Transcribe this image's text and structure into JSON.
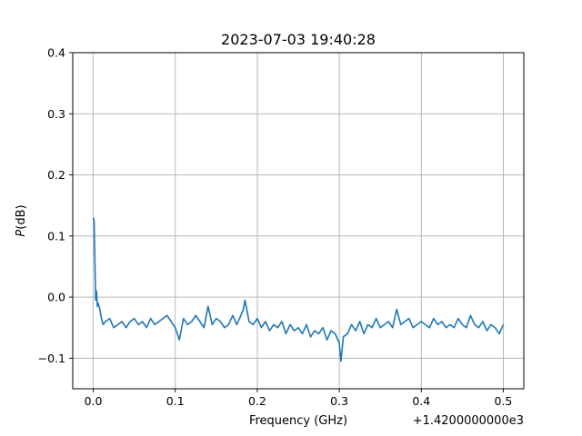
{
  "chart_data": {
    "type": "line",
    "title": "2023-07-03 19:40:28",
    "xlabel": "Frequency (GHz)",
    "ylabel_italic": "P",
    "ylabel_rest": "(dB)",
    "x_offset_label": "+1.4200000000e3",
    "xlim": [
      -0.025,
      0.525
    ],
    "ylim": [
      -0.15,
      0.4
    ],
    "x_ticks": [
      0.0,
      0.1,
      0.2,
      0.3,
      0.4,
      0.5
    ],
    "x_tick_labels": [
      "0.0",
      "0.1",
      "0.2",
      "0.3",
      "0.4",
      "0.5"
    ],
    "y_ticks": [
      -0.1,
      0.0,
      0.1,
      0.2,
      0.3,
      0.4
    ],
    "y_tick_labels": [
      "−0.1",
      "0.0",
      "0.1",
      "0.2",
      "0.3",
      "0.4"
    ],
    "grid": true,
    "line_color": "#1f77b4",
    "series": [
      {
        "x": [
          0.0,
          0.001,
          0.002,
          0.003,
          0.004,
          0.005,
          0.006,
          0.008,
          0.01,
          0.012,
          0.015,
          0.02,
          0.025,
          0.03,
          0.035,
          0.04,
          0.045,
          0.05,
          0.055,
          0.06,
          0.065,
          0.07,
          0.075,
          0.08,
          0.085,
          0.09,
          0.095,
          0.1,
          0.105,
          0.11,
          0.115,
          0.12,
          0.125,
          0.13,
          0.135,
          0.14,
          0.145,
          0.15,
          0.155,
          0.16,
          0.165,
          0.17,
          0.175,
          0.18,
          0.183,
          0.185,
          0.19,
          0.195,
          0.2,
          0.205,
          0.21,
          0.215,
          0.22,
          0.225,
          0.23,
          0.235,
          0.24,
          0.245,
          0.25,
          0.255,
          0.26,
          0.265,
          0.27,
          0.275,
          0.28,
          0.285,
          0.29,
          0.295,
          0.3,
          0.302,
          0.305,
          0.31,
          0.315,
          0.32,
          0.325,
          0.33,
          0.335,
          0.34,
          0.345,
          0.35,
          0.355,
          0.36,
          0.365,
          0.37,
          0.375,
          0.38,
          0.385,
          0.39,
          0.395,
          0.4,
          0.405,
          0.41,
          0.415,
          0.42,
          0.425,
          0.43,
          0.435,
          0.44,
          0.445,
          0.45,
          0.455,
          0.46,
          0.465,
          0.47,
          0.475,
          0.48,
          0.485,
          0.49,
          0.495,
          0.5
        ],
        "y": [
          0.13,
          0.125,
          0.06,
          -0.005,
          0.01,
          -0.015,
          -0.01,
          -0.02,
          -0.035,
          -0.045,
          -0.04,
          -0.035,
          -0.05,
          -0.045,
          -0.04,
          -0.05,
          -0.04,
          -0.035,
          -0.045,
          -0.04,
          -0.05,
          -0.035,
          -0.045,
          -0.04,
          -0.035,
          -0.03,
          -0.04,
          -0.05,
          -0.07,
          -0.035,
          -0.045,
          -0.04,
          -0.03,
          -0.04,
          -0.05,
          -0.015,
          -0.045,
          -0.035,
          -0.04,
          -0.05,
          -0.045,
          -0.03,
          -0.045,
          -0.03,
          -0.02,
          -0.005,
          -0.04,
          -0.045,
          -0.035,
          -0.05,
          -0.04,
          -0.055,
          -0.045,
          -0.05,
          -0.04,
          -0.06,
          -0.045,
          -0.055,
          -0.05,
          -0.06,
          -0.045,
          -0.065,
          -0.055,
          -0.06,
          -0.05,
          -0.07,
          -0.055,
          -0.06,
          -0.075,
          -0.105,
          -0.065,
          -0.06,
          -0.045,
          -0.055,
          -0.04,
          -0.06,
          -0.045,
          -0.05,
          -0.035,
          -0.05,
          -0.045,
          -0.04,
          -0.05,
          -0.02,
          -0.045,
          -0.04,
          -0.035,
          -0.05,
          -0.045,
          -0.04,
          -0.045,
          -0.05,
          -0.035,
          -0.045,
          -0.04,
          -0.05,
          -0.045,
          -0.05,
          -0.035,
          -0.045,
          -0.05,
          -0.03,
          -0.045,
          -0.05,
          -0.04,
          -0.055,
          -0.045,
          -0.05,
          -0.06,
          -0.045
        ]
      }
    ]
  }
}
